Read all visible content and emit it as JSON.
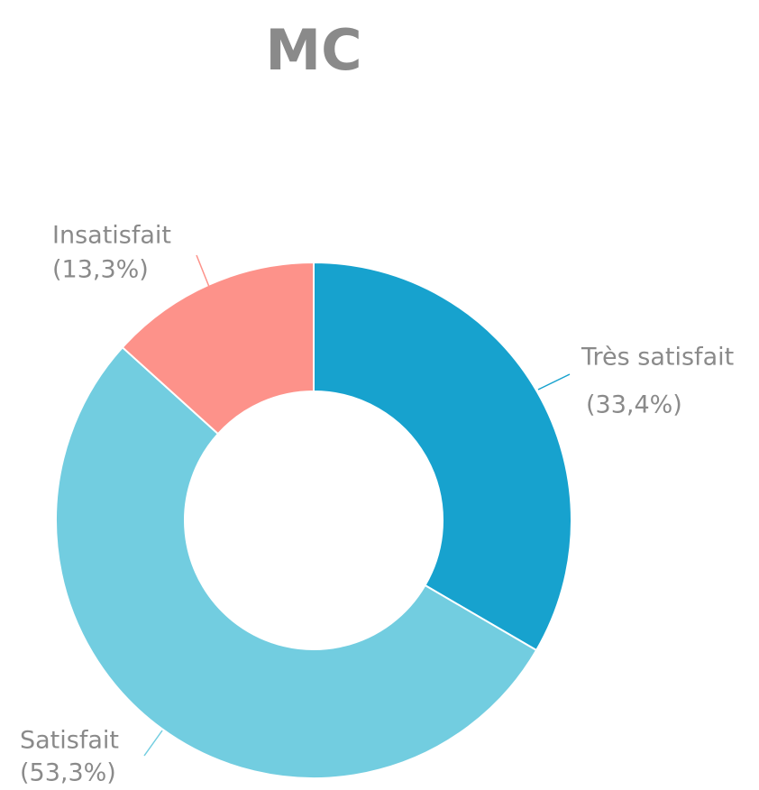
{
  "chart_data": {
    "type": "donut",
    "title": "MC",
    "categories": [
      "Très satisfait",
      "Satisfait",
      "Insatisfait"
    ],
    "values": [
      33.4,
      53.3,
      13.3
    ],
    "value_labels": [
      "(33,4%)",
      "(53,3%)",
      "(13,3%)"
    ],
    "colors": [
      "#17a2ce",
      "#72cde0",
      "#fd928a"
    ]
  }
}
